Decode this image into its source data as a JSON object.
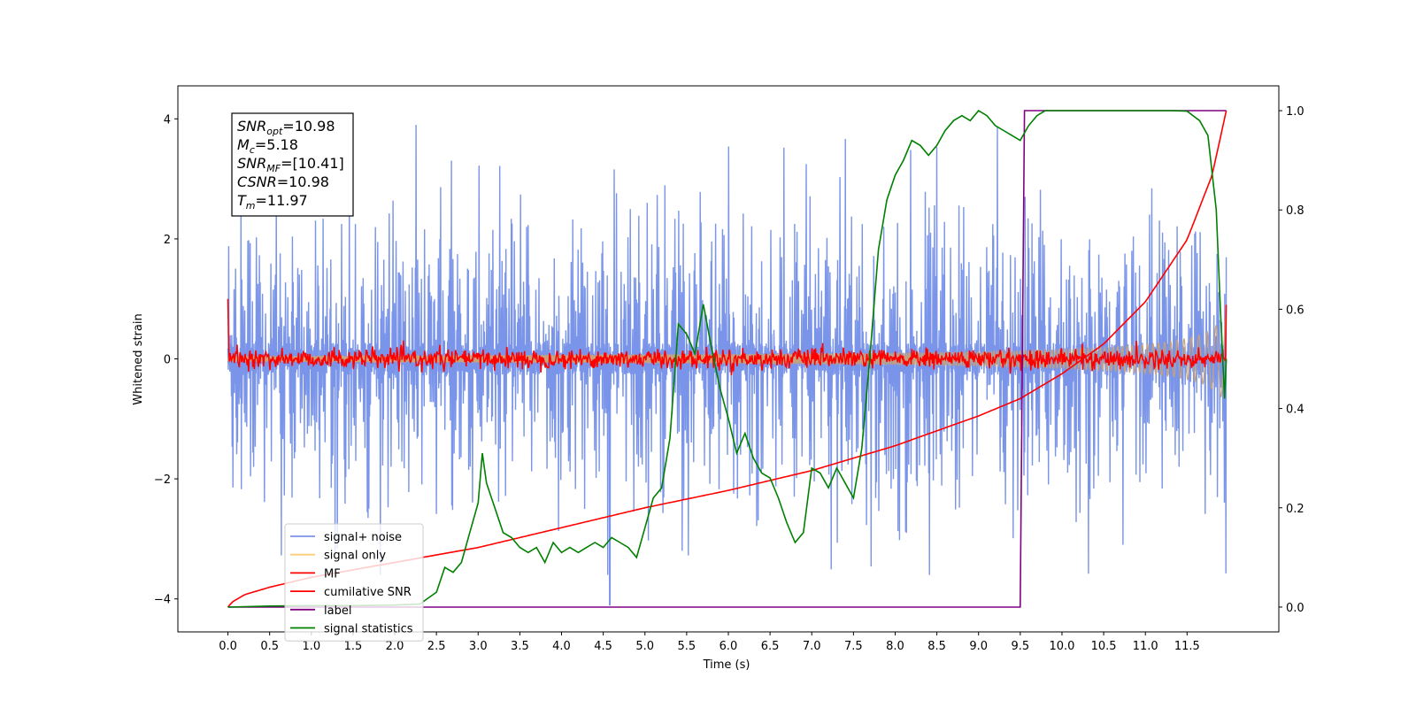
{
  "chart_data": {
    "type": "line",
    "xlabel": "Time (s)",
    "ylabel": "Whitened strain",
    "y2label": "",
    "xlim": [
      -0.6,
      12.6
    ],
    "ylim": [
      -4.55,
      4.55
    ],
    "y2lim": [
      -0.05,
      1.05
    ],
    "x_ticks": [
      0.0,
      0.5,
      1.0,
      1.5,
      2.0,
      2.5,
      3.0,
      3.5,
      4.0,
      4.5,
      5.0,
      5.5,
      6.0,
      6.5,
      7.0,
      7.5,
      8.0,
      8.5,
      9.0,
      9.5,
      10.0,
      10.5,
      11.0,
      11.5
    ],
    "x_tick_labels": [
      "0.0",
      "0.5",
      "1.0",
      "1.5",
      "2.0",
      "2.5",
      "3.0",
      "3.5",
      "4.0",
      "4.5",
      "5.0",
      "5.5",
      "6.0",
      "6.5",
      "7.0",
      "7.5",
      "8.0",
      "8.5",
      "9.0",
      "9.5",
      "10.0",
      "10.5",
      "11.0",
      "11.5"
    ],
    "y_ticks": [
      -4,
      -2,
      0,
      2,
      4
    ],
    "y_tick_labels": [
      "−4",
      "−2",
      "0",
      "2",
      "4"
    ],
    "y2_ticks": [
      0.0,
      0.2,
      0.4,
      0.6,
      0.8,
      1.0
    ],
    "y2_tick_labels": [
      "0.0",
      "0.2",
      "0.4",
      "0.6",
      "0.8",
      "1.0"
    ],
    "grid": false,
    "legend_position": "lower-left",
    "info_box": {
      "lines": [
        {
          "main": "SNR",
          "sub": "opt",
          "value": "=10.98"
        },
        {
          "main": "M",
          "sub": "c",
          "value": "=5.18"
        },
        {
          "main": "SNR",
          "sub": "MF",
          "value": "=[10.41]"
        },
        {
          "main": "CSNR",
          "sub": "",
          "value": "=10.98"
        },
        {
          "main": "T",
          "sub": "m",
          "value": "=11.97"
        }
      ]
    },
    "series": [
      {
        "name": "signal+ noise",
        "color": "#7994e8",
        "axis": "left",
        "kind": "noise",
        "x_range": [
          0.0,
          11.97
        ],
        "amplitude": 1.0,
        "extreme_low": [
          4.58,
          -4.1
        ]
      },
      {
        "name": "signal only",
        "color": "#c8a27a",
        "axis": "left",
        "kind": "chirp-envelope",
        "x": [
          0.0,
          2.0,
          4.0,
          6.0,
          7.0,
          8.0,
          9.0,
          9.5,
          10.0,
          10.5,
          11.0,
          11.3,
          11.5,
          11.7,
          11.8,
          11.9,
          11.97
        ],
        "envelope": [
          0.05,
          0.06,
          0.07,
          0.08,
          0.09,
          0.1,
          0.12,
          0.14,
          0.16,
          0.19,
          0.24,
          0.29,
          0.34,
          0.42,
          0.5,
          0.62,
          0.72
        ]
      },
      {
        "name": "MF",
        "color": "#ff0000",
        "axis": "left",
        "kind": "noise",
        "x_range": [
          0.0,
          11.97
        ],
        "amplitude": 0.08,
        "start_value": 1.0
      },
      {
        "name": "cumilative SNR",
        "color": "#ff0000",
        "axis": "right",
        "x": [
          0.0,
          0.05,
          0.2,
          0.5,
          1.0,
          2.0,
          3.0,
          4.0,
          5.0,
          6.0,
          7.0,
          8.0,
          9.0,
          9.5,
          10.0,
          10.5,
          11.0,
          11.5,
          11.8,
          11.97
        ],
        "y": [
          0.0,
          0.01,
          0.025,
          0.04,
          0.06,
          0.09,
          0.12,
          0.16,
          0.2,
          0.235,
          0.275,
          0.325,
          0.385,
          0.42,
          0.47,
          0.53,
          0.615,
          0.74,
          0.87,
          1.0
        ]
      },
      {
        "name": "label",
        "color": "#800080",
        "axis": "right",
        "x": [
          0.0,
          9.5,
          9.55,
          11.97
        ],
        "y": [
          0.0,
          0.0,
          1.0,
          1.0
        ]
      },
      {
        "name": "signal statistics",
        "color": "#008000",
        "axis": "right",
        "x": [
          0.0,
          0.5,
          1.0,
          1.5,
          2.0,
          2.3,
          2.5,
          2.6,
          2.7,
          2.8,
          2.9,
          3.0,
          3.05,
          3.1,
          3.2,
          3.3,
          3.4,
          3.5,
          3.6,
          3.7,
          3.8,
          3.9,
          4.0,
          4.1,
          4.2,
          4.3,
          4.4,
          4.5,
          4.6,
          4.7,
          4.8,
          4.9,
          5.0,
          5.1,
          5.2,
          5.3,
          5.4,
          5.5,
          5.6,
          5.7,
          5.8,
          5.9,
          6.0,
          6.1,
          6.2,
          6.3,
          6.4,
          6.5,
          6.6,
          6.7,
          6.8,
          6.9,
          7.0,
          7.1,
          7.2,
          7.3,
          7.4,
          7.5,
          7.6,
          7.7,
          7.8,
          7.9,
          8.0,
          8.1,
          8.2,
          8.3,
          8.4,
          8.5,
          8.6,
          8.7,
          8.8,
          8.9,
          9.0,
          9.1,
          9.2,
          9.3,
          9.4,
          9.5,
          9.6,
          9.7,
          9.8,
          10.0,
          10.5,
          11.0,
          11.3,
          11.5,
          11.65,
          11.75,
          11.85,
          11.9,
          11.95,
          11.97
        ],
        "y": [
          0.0,
          0.002,
          0.003,
          0.003,
          0.004,
          0.006,
          0.03,
          0.08,
          0.07,
          0.09,
          0.15,
          0.21,
          0.31,
          0.25,
          0.2,
          0.15,
          0.14,
          0.12,
          0.11,
          0.12,
          0.09,
          0.13,
          0.11,
          0.12,
          0.11,
          0.12,
          0.13,
          0.12,
          0.14,
          0.13,
          0.12,
          0.1,
          0.16,
          0.22,
          0.24,
          0.34,
          0.57,
          0.55,
          0.51,
          0.61,
          0.52,
          0.44,
          0.38,
          0.31,
          0.35,
          0.3,
          0.27,
          0.26,
          0.22,
          0.17,
          0.13,
          0.15,
          0.28,
          0.27,
          0.24,
          0.28,
          0.25,
          0.22,
          0.32,
          0.51,
          0.72,
          0.82,
          0.87,
          0.9,
          0.94,
          0.93,
          0.91,
          0.93,
          0.96,
          0.98,
          0.99,
          0.98,
          1.0,
          0.99,
          0.97,
          0.96,
          0.95,
          0.94,
          0.97,
          0.99,
          1.0,
          1.0,
          1.0,
          1.0,
          1.0,
          0.999,
          0.98,
          0.95,
          0.8,
          0.6,
          0.42,
          0.5
        ]
      }
    ]
  }
}
